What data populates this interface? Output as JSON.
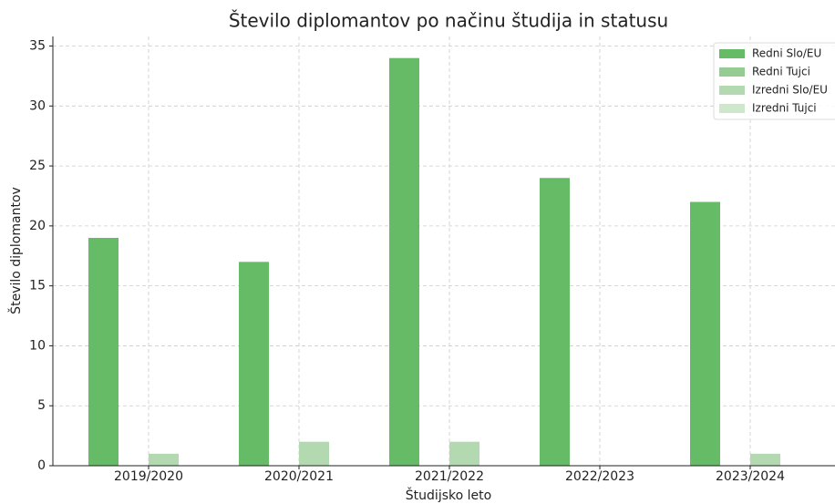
{
  "chart_data": {
    "type": "bar",
    "title": "Število diplomantov po načinu študija in statusu",
    "x_label": "Študijsko leto",
    "y_label": "Število diplomantov",
    "categories": [
      "2019/2020",
      "2020/2021",
      "2021/2022",
      "2022/2023",
      "2023/2024"
    ],
    "series": [
      {
        "name": "Redni Slo/EU",
        "color": "#66bb66",
        "values": [
          19,
          17,
          34,
          24,
          22
        ]
      },
      {
        "name": "Redni Tujci",
        "color": "#94cc94",
        "values": [
          0,
          0,
          0,
          0,
          0
        ]
      },
      {
        "name": "Izredni Slo/EU",
        "color": "#b2d9b0",
        "values": [
          1,
          2,
          2,
          0,
          1
        ]
      },
      {
        "name": "Izredni Tujci",
        "color": "#cfe8cd",
        "values": [
          0,
          0,
          0,
          0,
          0
        ]
      }
    ],
    "ylim": [
      0,
      35.8
    ],
    "yticks": [
      0,
      5,
      10,
      15,
      20,
      25,
      30,
      35
    ],
    "grid": true,
    "legend": "upper right"
  }
}
